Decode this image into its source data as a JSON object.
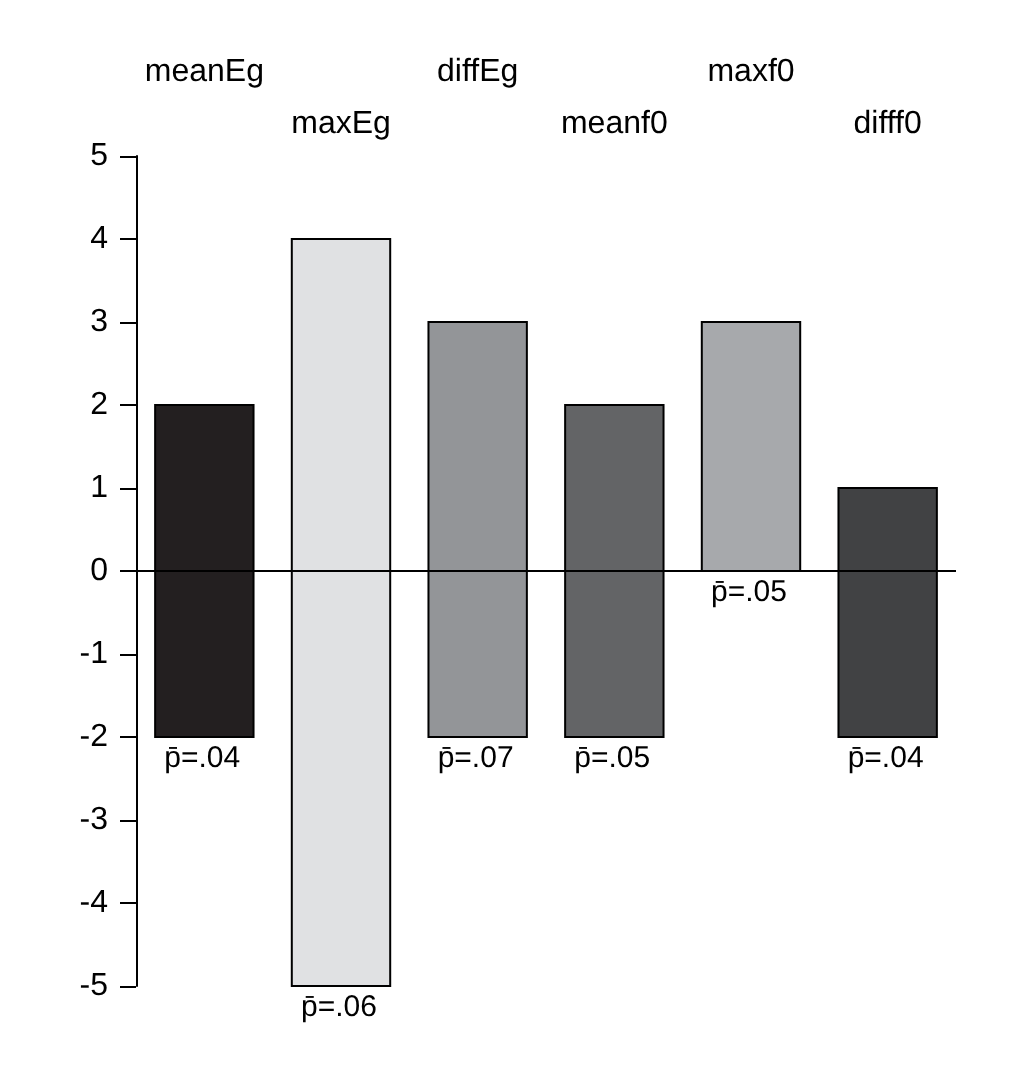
{
  "chart_data": {
    "type": "bar",
    "categories": [
      "meanEg",
      "maxEg",
      "diffEg",
      "meanf0",
      "maxf0",
      "difff0"
    ],
    "base": [
      -2,
      -5,
      -2,
      -2,
      0,
      -2
    ],
    "values": [
      4,
      9,
      5,
      4,
      3,
      3
    ],
    "colors": [
      "#231f20",
      "#e0e1e3",
      "#939598",
      "#636466",
      "#a7a9ac",
      "#414244"
    ],
    "ylim": [
      -5,
      5
    ],
    "yticks": [
      -5,
      -4,
      -3,
      -2,
      -1,
      0,
      1,
      2,
      3,
      4,
      5
    ],
    "grid": false,
    "ref_lines": [
      {
        "axis": "y",
        "value": 0,
        "color": "#000000"
      }
    ],
    "annotations": [
      {
        "text": "p̄=.04",
        "x": "meanEg",
        "y": -2
      },
      {
        "text": "p̄=.06",
        "x": "maxEg",
        "y": -5
      },
      {
        "text": "p̄=.07",
        "x": "diffEg",
        "y": -2
      },
      {
        "text": "p̄=.05",
        "x": "meanf0",
        "y": -2
      },
      {
        "text": "p̄=.05",
        "x": "maxf0",
        "y": 0
      },
      {
        "text": "p̄=.04",
        "x": "difff0",
        "y": -2
      }
    ]
  }
}
